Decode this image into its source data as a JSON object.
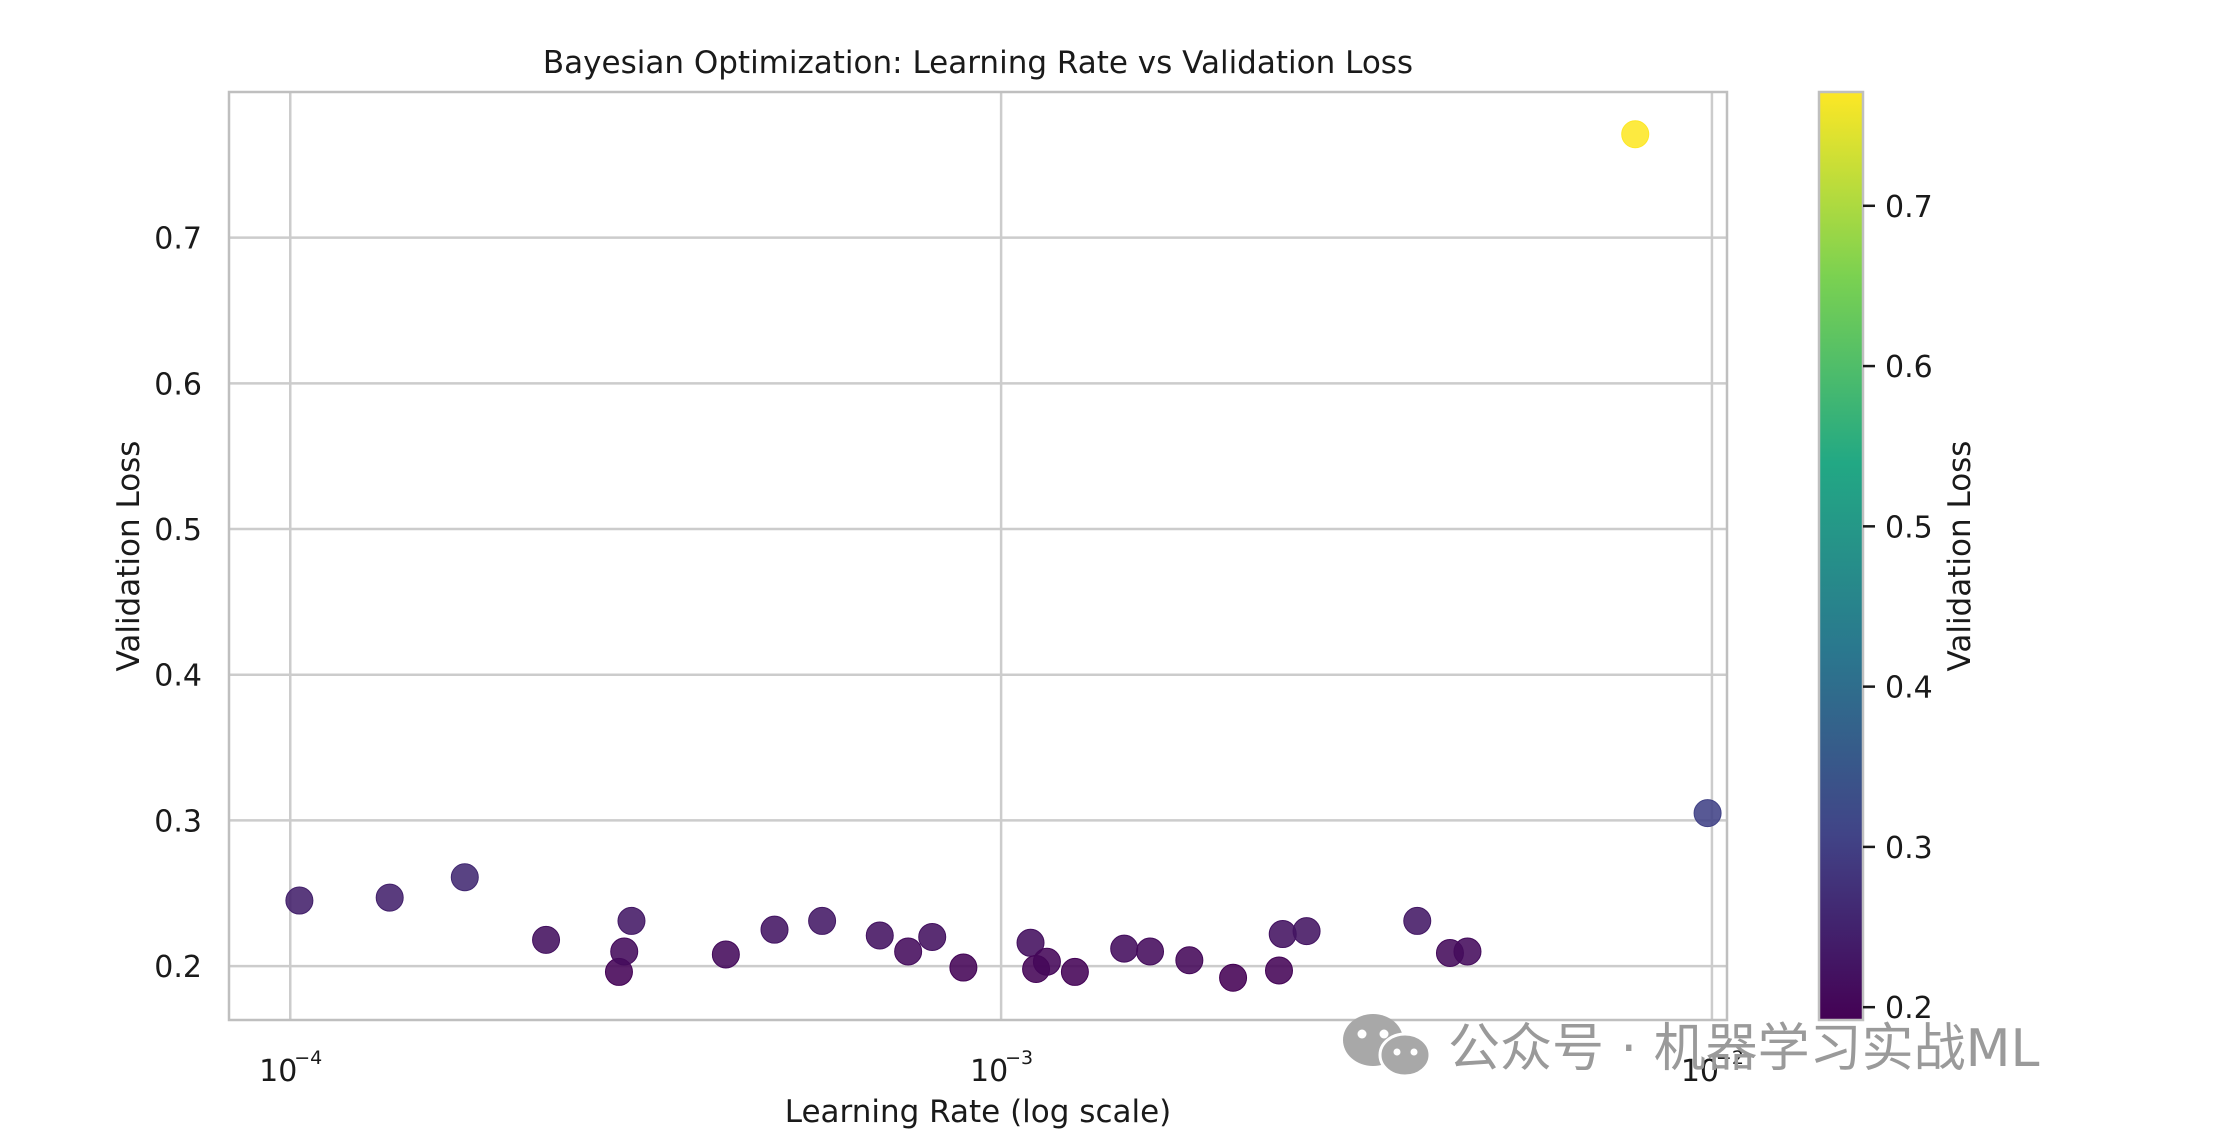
{
  "chart_data": {
    "type": "scatter",
    "title": "Bayesian Optimization: Learning Rate vs Validation Loss",
    "xlabel": "Learning Rate (log scale)",
    "ylabel": "Validation Loss",
    "xscale": "log",
    "xlim": [
      8.2e-05,
      0.0105
    ],
    "ylim": [
      0.163,
      0.8
    ],
    "grid": true,
    "x_ticks": [
      {
        "value": 0.0001,
        "base": "10",
        "exp": "−4"
      },
      {
        "value": 0.001,
        "base": "10",
        "exp": "−3"
      },
      {
        "value": 0.01,
        "base": "10",
        "exp": "−2"
      }
    ],
    "y_ticks": [
      0.2,
      0.3,
      0.4,
      0.5,
      0.6,
      0.7
    ],
    "colormap": "viridis",
    "colormap_stops": [
      "#440154",
      "#414487",
      "#2a788e",
      "#22a884",
      "#7ad151",
      "#fde725"
    ],
    "colorbar": {
      "label": "Validation Loss",
      "range": [
        0.192,
        0.771
      ],
      "ticks": [
        0.2,
        0.3,
        0.4,
        0.5,
        0.6,
        0.7
      ]
    },
    "points": [
      {
        "x": 0.000103,
        "y": 0.245
      },
      {
        "x": 0.000138,
        "y": 0.247
      },
      {
        "x": 0.000176,
        "y": 0.261
      },
      {
        "x": 0.000229,
        "y": 0.218
      },
      {
        "x": 0.00029,
        "y": 0.196
      },
      {
        "x": 0.000295,
        "y": 0.21
      },
      {
        "x": 0.000302,
        "y": 0.231
      },
      {
        "x": 0.00041,
        "y": 0.208
      },
      {
        "x": 0.00048,
        "y": 0.225
      },
      {
        "x": 0.00056,
        "y": 0.231
      },
      {
        "x": 0.000675,
        "y": 0.221
      },
      {
        "x": 0.00074,
        "y": 0.21
      },
      {
        "x": 0.0008,
        "y": 0.22
      },
      {
        "x": 0.000885,
        "y": 0.199
      },
      {
        "x": 0.0011,
        "y": 0.216
      },
      {
        "x": 0.00112,
        "y": 0.198
      },
      {
        "x": 0.00116,
        "y": 0.203
      },
      {
        "x": 0.00127,
        "y": 0.196
      },
      {
        "x": 0.00149,
        "y": 0.212
      },
      {
        "x": 0.00162,
        "y": 0.21
      },
      {
        "x": 0.00184,
        "y": 0.204
      },
      {
        "x": 0.00212,
        "y": 0.192
      },
      {
        "x": 0.00246,
        "y": 0.197
      },
      {
        "x": 0.00249,
        "y": 0.222
      },
      {
        "x": 0.00269,
        "y": 0.224
      },
      {
        "x": 0.00385,
        "y": 0.231
      },
      {
        "x": 0.00428,
        "y": 0.209
      },
      {
        "x": 0.00453,
        "y": 0.21
      },
      {
        "x": 0.0078,
        "y": 0.771
      },
      {
        "x": 0.00986,
        "y": 0.305
      }
    ]
  },
  "watermark": {
    "text": "公众号 · 机器学习实战ML",
    "icon": "wechat-icon"
  }
}
